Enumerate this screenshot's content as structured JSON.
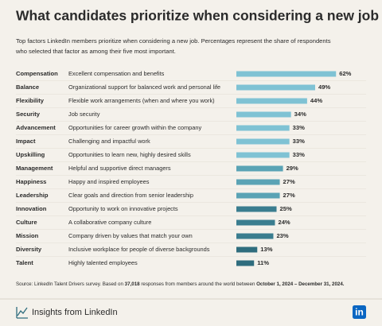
{
  "chart_data": {
    "type": "bar",
    "orientation": "horizontal",
    "title": "What candidates prioritize when considering a new job",
    "subtitle": [
      "Top factors LinkedIn members prioritize when considering a new job. Percentages represent the share of respondents",
      "who selected that factor as among their five most important."
    ],
    "categories": [
      "Compensation",
      "Balance",
      "Flexibility",
      "Security",
      "Advancement",
      "Impact",
      "Upskilling",
      "Management",
      "Happiness",
      "Leadership",
      "Innovation",
      "Culture",
      "Mission",
      "Diversity",
      "Talent"
    ],
    "descriptions": [
      "Excellent compensation and benefits",
      "Organizational support for balanced work and personal life",
      "Flexible work arrangements (when and where you work)",
      "Job security",
      "Opportunities for career growth within the company",
      "Challenging and impactful work",
      "Opportunities to learn new, highly desired skills",
      "Helpful and supportive direct managers",
      "Happy and inspired employees",
      "Clear goals and direction from senior leadership",
      "Opportunity to work on innovative projects",
      "A collaborative company culture",
      "Company driven by values that match your own",
      "Inclusive workplace for people of diverse backgrounds",
      "Highly talented employees"
    ],
    "values": [
      62,
      49,
      44,
      34,
      33,
      33,
      33,
      29,
      27,
      27,
      25,
      24,
      23,
      13,
      11
    ],
    "value_labels": [
      "62%",
      "49%",
      "44%",
      "34%",
      "33%",
      "33%",
      "33%",
      "29%",
      "27%",
      "27%",
      "25%",
      "24%",
      "23%",
      "13%",
      "11%"
    ],
    "colors": [
      "#7fc2d4",
      "#7fc2d4",
      "#7fc2d4",
      "#7fc2d4",
      "#7fc2d4",
      "#7fc2d4",
      "#7fc2d4",
      "#5aa3b5",
      "#5aa3b5",
      "#5aa3b5",
      "#3a7d8f",
      "#3a7d8f",
      "#3a7d8f",
      "#2f6d7e",
      "#2f6d7e"
    ],
    "source": [
      "Source: LinkedIn Talent Drivers survey. Based on ",
      "37,018",
      " responses from members around the world between ",
      "October 1, 2024 – December 31, 2024."
    ],
    "footer": "Insights from LinkedIn",
    "logo": "in"
  }
}
